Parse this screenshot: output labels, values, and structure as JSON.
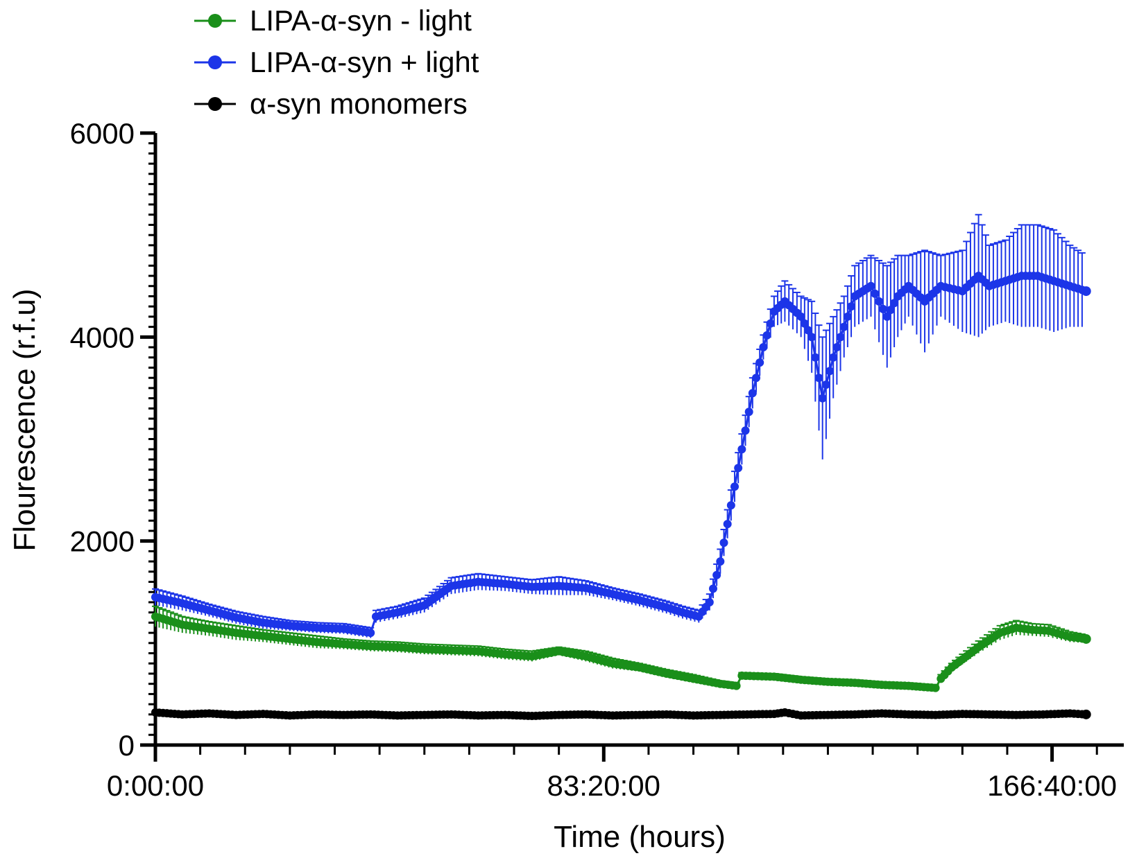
{
  "chart_data": {
    "type": "line",
    "xlabel": "Time (hours)",
    "ylabel": "Flourescence (r.f.u)",
    "xlim": [
      0,
      180
    ],
    "ylim": [
      0,
      6000
    ],
    "x_tick_values": [
      0,
      83.333,
      166.667
    ],
    "x_tick_labels": [
      "0:00:00",
      "83:20:00",
      "166:40:00"
    ],
    "y_ticks": [
      0,
      2000,
      4000,
      6000
    ],
    "legend_position": "top-left",
    "series": [
      {
        "name": "LIPA-α-syn - light",
        "color": "#1a8f1a",
        "points": [
          [
            0,
            1260
          ],
          [
            5,
            1180
          ],
          [
            10,
            1140
          ],
          [
            15,
            1100
          ],
          [
            20,
            1070
          ],
          [
            25,
            1040
          ],
          [
            30,
            1010
          ],
          [
            35,
            990
          ],
          [
            40,
            970
          ],
          [
            45,
            960
          ],
          [
            50,
            940
          ],
          [
            55,
            930
          ],
          [
            60,
            920
          ],
          [
            65,
            890
          ],
          [
            70,
            870
          ],
          [
            75,
            920
          ],
          [
            80,
            870
          ],
          [
            85,
            800
          ],
          [
            90,
            760
          ],
          [
            95,
            700
          ],
          [
            100,
            650
          ],
          [
            105,
            600
          ],
          [
            108,
            580
          ],
          [
            109,
            680
          ],
          [
            115,
            670
          ],
          [
            120,
            640
          ],
          [
            125,
            620
          ],
          [
            130,
            610
          ],
          [
            135,
            590
          ],
          [
            140,
            580
          ],
          [
            145,
            560
          ],
          [
            146,
            650
          ],
          [
            148,
            760
          ],
          [
            150,
            840
          ],
          [
            153,
            960
          ],
          [
            157,
            1100
          ],
          [
            160,
            1150
          ],
          [
            163,
            1130
          ],
          [
            166,
            1120
          ],
          [
            170,
            1060
          ],
          [
            173,
            1040
          ]
        ],
        "error": [
          100,
          80,
          70,
          70,
          60,
          60,
          60,
          50,
          50,
          50,
          50,
          50,
          50,
          50,
          50,
          40,
          50,
          50,
          40,
          40,
          40,
          30,
          30,
          30,
          30,
          30,
          30,
          30,
          30,
          30,
          30,
          40,
          40,
          50,
          60,
          70,
          70,
          60,
          60,
          50,
          40
        ]
      },
      {
        "name": "LIPA-α-syn + light",
        "color": "#1c35e8",
        "points": [
          [
            0,
            1450
          ],
          [
            5,
            1390
          ],
          [
            10,
            1320
          ],
          [
            15,
            1250
          ],
          [
            20,
            1200
          ],
          [
            25,
            1170
          ],
          [
            30,
            1150
          ],
          [
            35,
            1140
          ],
          [
            40,
            1100
          ],
          [
            41,
            1260
          ],
          [
            45,
            1300
          ],
          [
            50,
            1370
          ],
          [
            55,
            1560
          ],
          [
            60,
            1600
          ],
          [
            65,
            1580
          ],
          [
            70,
            1550
          ],
          [
            75,
            1560
          ],
          [
            80,
            1540
          ],
          [
            85,
            1480
          ],
          [
            90,
            1420
          ],
          [
            95,
            1350
          ],
          [
            98,
            1300
          ],
          [
            101,
            1260
          ],
          [
            103,
            1400
          ],
          [
            105,
            1800
          ],
          [
            107,
            2350
          ],
          [
            109,
            2900
          ],
          [
            111,
            3450
          ],
          [
            113,
            3900
          ],
          [
            115,
            4250
          ],
          [
            117,
            4350
          ],
          [
            120,
            4200
          ],
          [
            122,
            4000
          ],
          [
            124,
            3400
          ],
          [
            126,
            3800
          ],
          [
            128,
            4100
          ],
          [
            130,
            4400
          ],
          [
            133,
            4500
          ],
          [
            136,
            4200
          ],
          [
            138,
            4400
          ],
          [
            140,
            4500
          ],
          [
            143,
            4350
          ],
          [
            146,
            4500
          ],
          [
            150,
            4450
          ],
          [
            153,
            4600
          ],
          [
            155,
            4500
          ],
          [
            158,
            4550
          ],
          [
            161,
            4600
          ],
          [
            164,
            4600
          ],
          [
            167,
            4550
          ],
          [
            170,
            4500
          ],
          [
            173,
            4450
          ]
        ],
        "error": [
          80,
          70,
          60,
          60,
          60,
          50,
          50,
          50,
          50,
          60,
          60,
          70,
          80,
          80,
          70,
          70,
          90,
          70,
          60,
          60,
          60,
          60,
          60,
          80,
          120,
          150,
          150,
          150,
          120,
          150,
          200,
          200,
          350,
          600,
          400,
          300,
          300,
          300,
          500,
          400,
          300,
          500,
          300,
          400,
          600,
          400,
          400,
          500,
          500,
          500,
          400,
          350
        ]
      },
      {
        "name": "α-syn monomers",
        "color": "#000000",
        "points": [
          [
            0,
            320
          ],
          [
            5,
            300
          ],
          [
            10,
            310
          ],
          [
            15,
            295
          ],
          [
            20,
            305
          ],
          [
            25,
            290
          ],
          [
            30,
            300
          ],
          [
            35,
            295
          ],
          [
            40,
            300
          ],
          [
            45,
            290
          ],
          [
            50,
            295
          ],
          [
            55,
            300
          ],
          [
            60,
            290
          ],
          [
            65,
            295
          ],
          [
            70,
            285
          ],
          [
            75,
            295
          ],
          [
            80,
            300
          ],
          [
            85,
            290
          ],
          [
            90,
            295
          ],
          [
            95,
            300
          ],
          [
            100,
            290
          ],
          [
            105,
            295
          ],
          [
            110,
            300
          ],
          [
            115,
            305
          ],
          [
            117,
            320
          ],
          [
            120,
            290
          ],
          [
            125,
            295
          ],
          [
            130,
            300
          ],
          [
            135,
            310
          ],
          [
            140,
            300
          ],
          [
            145,
            295
          ],
          [
            150,
            305
          ],
          [
            155,
            300
          ],
          [
            160,
            295
          ],
          [
            165,
            300
          ],
          [
            170,
            310
          ],
          [
            173,
            300
          ]
        ],
        "error": [
          20,
          20,
          20,
          20,
          20,
          20,
          20,
          20,
          20,
          20,
          20,
          20,
          20,
          20,
          20,
          20,
          20,
          20,
          20,
          20,
          20,
          20,
          20,
          20,
          20,
          20,
          20,
          20,
          20,
          20,
          20,
          20,
          20,
          20,
          20,
          20,
          20
        ]
      }
    ]
  }
}
